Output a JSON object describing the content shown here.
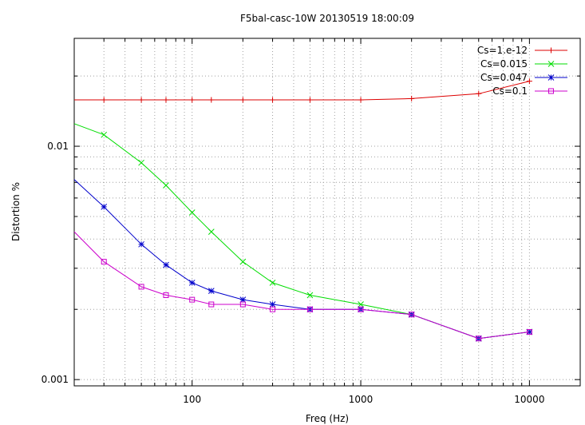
{
  "chart_data": {
    "type": "line",
    "title": "F5bal-casc-10W 20130519 18:00:09",
    "xlabel": "Freq (Hz)",
    "ylabel": "Distortion %",
    "x_scale": "log",
    "y_scale": "log",
    "xlim": [
      20,
      20000
    ],
    "ylim": [
      0.00094,
      0.029
    ],
    "grid": true,
    "legend_position": "top-right",
    "x_ticks": [
      {
        "value": 100,
        "label": "100"
      },
      {
        "value": 1000,
        "label": "1000"
      },
      {
        "value": 10000,
        "label": "10000"
      }
    ],
    "y_ticks": [
      {
        "value": 0.001,
        "label": "0.001"
      },
      {
        "value": 0.01,
        "label": "0.01"
      }
    ],
    "series": [
      {
        "name": "Cs=1.e-12",
        "color": "#dd0000",
        "marker": "plus",
        "x": [
          20,
          30,
          50,
          70,
          100,
          130,
          200,
          300,
          500,
          1000,
          2000,
          5000,
          10000
        ],
        "y": [
          0.0158,
          0.0158,
          0.0158,
          0.0158,
          0.0158,
          0.0158,
          0.0158,
          0.0158,
          0.0158,
          0.0158,
          0.016,
          0.0168,
          0.019
        ]
      },
      {
        "name": "Cs=0.015",
        "color": "#00dd00",
        "marker": "x",
        "x": [
          20,
          30,
          50,
          70,
          100,
          130,
          200,
          300,
          500,
          1000,
          2000,
          5000,
          10000
        ],
        "y": [
          0.0125,
          0.0112,
          0.0085,
          0.0068,
          0.0052,
          0.0043,
          0.0032,
          0.0026,
          0.0023,
          0.0021,
          0.0019,
          0.0015,
          0.0016
        ]
      },
      {
        "name": "Cs=0.047",
        "color": "#0000cc",
        "marker": "star",
        "x": [
          20,
          30,
          50,
          70,
          100,
          130,
          200,
          300,
          500,
          1000,
          2000,
          5000,
          10000
        ],
        "y": [
          0.0072,
          0.0055,
          0.0038,
          0.0031,
          0.0026,
          0.0024,
          0.0022,
          0.0021,
          0.002,
          0.002,
          0.0019,
          0.0015,
          0.0016
        ]
      },
      {
        "name": "Cs=0.1",
        "color": "#cc00cc",
        "marker": "square",
        "x": [
          20,
          30,
          50,
          70,
          100,
          130,
          200,
          300,
          500,
          1000,
          2000,
          5000,
          10000
        ],
        "y": [
          0.0043,
          0.0032,
          0.0025,
          0.0023,
          0.0022,
          0.0021,
          0.0021,
          0.002,
          0.002,
          0.002,
          0.0019,
          0.0015,
          0.0016
        ]
      }
    ]
  }
}
